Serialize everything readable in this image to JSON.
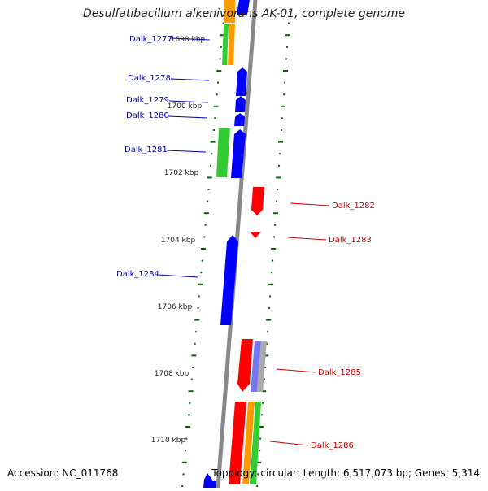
{
  "title": "Desulfatibacillum alkenivorans AK-01, complete genome",
  "footer": {
    "accession": "Accession: NC_011768",
    "topology": "Topology: circular; Length: 6,517,073 bp; Genes: 5,314"
  },
  "colors": {
    "forward_gene": "#0000ff",
    "reverse_gene": "#ff0000",
    "forward_label": "#0000aa",
    "reverse_label": "#cc0000",
    "tick": "#006600",
    "backbone": "#888888",
    "track_green": "#33cc33",
    "track_orange": "#ff9900",
    "track_purple": "#7777ee",
    "track_grey": "#aaaaaa"
  },
  "scale_labels": [
    "1698 kbp",
    "1700 kbp",
    "1702 kbp",
    "1704 kbp",
    "1706 kbp",
    "1708 kbp",
    "1710 kbp"
  ],
  "genes": [
    {
      "label": "Dalk_1277",
      "strand": "forward"
    },
    {
      "label": "Dalk_1278",
      "strand": "forward"
    },
    {
      "label": "Dalk_1279",
      "strand": "forward"
    },
    {
      "label": "Dalk_1280",
      "strand": "forward"
    },
    {
      "label": "Dalk_1281",
      "strand": "forward"
    },
    {
      "label": "Dalk_1282",
      "strand": "reverse"
    },
    {
      "label": "Dalk_1283",
      "strand": "reverse"
    },
    {
      "label": "Dalk_1284",
      "strand": "forward"
    },
    {
      "label": "Dalk_1285",
      "strand": "reverse"
    },
    {
      "label": "Dalk_1286",
      "strand": "reverse"
    }
  ]
}
